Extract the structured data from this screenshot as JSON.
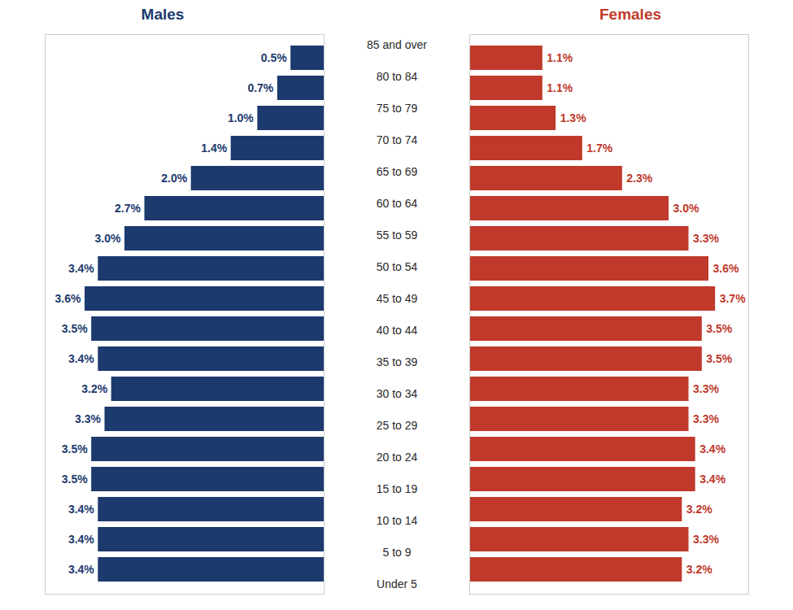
{
  "chart_data": {
    "type": "bar",
    "orientation": "horizontal",
    "categories": [
      "Under 5",
      "5 to 9",
      "10 to 14",
      "15 to 19",
      "20 to 24",
      "25 to 29",
      "30 to 34",
      "35 to 39",
      "40 to 44",
      "45 to 49",
      "50 to 54",
      "55 to 59",
      "60 to 64",
      "65 to 69",
      "70 to 74",
      "75 to 79",
      "80 to 84",
      "85 and over"
    ],
    "series": [
      {
        "name": "Males",
        "color": "#1c3a6e",
        "values": [
          3.4,
          3.4,
          3.4,
          3.5,
          3.5,
          3.3,
          3.2,
          3.4,
          3.5,
          3.6,
          3.4,
          3.0,
          2.7,
          2.0,
          1.4,
          1.0,
          0.7,
          0.5
        ],
        "value_labels": [
          "3.4%",
          "3.4%",
          "3.4%",
          "3.5%",
          "3.5%",
          "3.3%",
          "3.2%",
          "3.4%",
          "3.5%",
          "3.6%",
          "3.4%",
          "3.0%",
          "2.7%",
          "2.0%",
          "1.4%",
          "1.0%",
          "0.7%",
          "0.5%"
        ]
      },
      {
        "name": "Females",
        "color": "#c0392b",
        "values": [
          3.2,
          3.3,
          3.2,
          3.4,
          3.4,
          3.3,
          3.3,
          3.5,
          3.5,
          3.7,
          3.6,
          3.3,
          3.0,
          2.3,
          1.7,
          1.3,
          1.1,
          1.1
        ],
        "value_labels": [
          "3.2%",
          "3.3%",
          "3.2%",
          "3.4%",
          "3.4%",
          "3.3%",
          "3.3%",
          "3.5%",
          "3.5%",
          "3.7%",
          "3.6%",
          "3.3%",
          "3.0%",
          "2.3%",
          "1.7%",
          "1.3%",
          "1.1%",
          "1.1%"
        ]
      }
    ],
    "xlim": [
      0,
      4.2
    ],
    "data_labels": true,
    "tick_labels": "y",
    "grid": false
  }
}
